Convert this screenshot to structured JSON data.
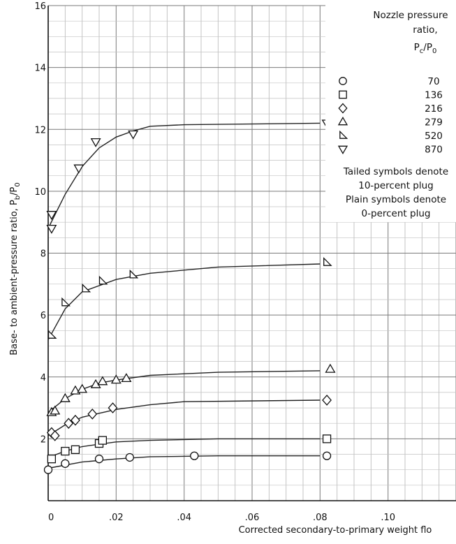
{
  "chart_data": {
    "type": "scatter",
    "xlabel": "Corrected secondary-to-primary weight flo",
    "ylabel_main": "Base- to ambient-pressure ratio,",
    "ylabel_sym": "P",
    "ylabel_sub_b": "b",
    "ylabel_slash": "/P",
    "ylabel_sub_0": "0",
    "xlim": [
      0,
      0.12
    ],
    "ylim": [
      0,
      16
    ],
    "x_ticks": [
      {
        "value": 0,
        "label": "0"
      },
      {
        "value": 0.02,
        "label": ".02"
      },
      {
        "value": 0.04,
        "label": ".04"
      },
      {
        "value": 0.06,
        "label": ".06"
      },
      {
        "value": 0.08,
        "label": ".08"
      },
      {
        "value": 0.1,
        "label": ".10"
      }
    ],
    "y_ticks": [
      {
        "value": 0,
        "label": ""
      },
      {
        "value": 2,
        "label": "2"
      },
      {
        "value": 4,
        "label": "4"
      },
      {
        "value": 6,
        "label": "6"
      },
      {
        "value": 8,
        "label": "8"
      },
      {
        "value": 10,
        "label": "10"
      },
      {
        "value": 12,
        "label": "12"
      },
      {
        "value": 14,
        "label": "14"
      },
      {
        "value": 16,
        "label": "16"
      }
    ],
    "grid": true,
    "legend_position": "top-right",
    "legend": {
      "title_lines": [
        "Nozzle pressure",
        "ratio,"
      ],
      "title_sym": "P",
      "title_sub_c": "c",
      "title_slash": "/P",
      "title_sub_0": "0",
      "entries": [
        {
          "marker": "circle",
          "label": "70"
        },
        {
          "marker": "square",
          "label": "136"
        },
        {
          "marker": "diamond",
          "label": "216"
        },
        {
          "marker": "triangle-up",
          "label": "279"
        },
        {
          "marker": "triangle-right",
          "label": "520"
        },
        {
          "marker": "triangle-down",
          "label": "870"
        }
      ],
      "notes": [
        "Tailed symbols denote",
        "10-percent plug",
        "Plain symbols denote",
        "0-percent plug"
      ]
    },
    "series": [
      {
        "marker": "circle",
        "points": [
          [
            0,
            1.0
          ],
          [
            0.005,
            1.2
          ],
          [
            0.015,
            1.35
          ],
          [
            0.024,
            1.4
          ],
          [
            0.043,
            1.45
          ],
          [
            0.082,
            1.45
          ]
        ],
        "curve": [
          [
            0,
            1.05
          ],
          [
            0.01,
            1.25
          ],
          [
            0.02,
            1.35
          ],
          [
            0.03,
            1.42
          ],
          [
            0.05,
            1.45
          ],
          [
            0.08,
            1.45
          ]
        ]
      },
      {
        "marker": "square",
        "points": [
          [
            0.001,
            1.35
          ],
          [
            0.005,
            1.6
          ],
          [
            0.008,
            1.65
          ],
          [
            0.015,
            1.85
          ],
          [
            0.016,
            1.95
          ],
          [
            0.082,
            2.0
          ]
        ],
        "curve": [
          [
            0,
            1.4
          ],
          [
            0.005,
            1.6
          ],
          [
            0.01,
            1.75
          ],
          [
            0.02,
            1.9
          ],
          [
            0.03,
            1.95
          ],
          [
            0.05,
            2.0
          ],
          [
            0.08,
            2.0
          ]
        ]
      },
      {
        "marker": "diamond",
        "points": [
          [
            0.001,
            2.2
          ],
          [
            0.002,
            2.1
          ],
          [
            0.006,
            2.5
          ],
          [
            0.008,
            2.6
          ],
          [
            0.013,
            2.8
          ],
          [
            0.019,
            3.0
          ],
          [
            0.082,
            3.25
          ]
        ],
        "curve": [
          [
            0,
            2.1
          ],
          [
            0.005,
            2.45
          ],
          [
            0.01,
            2.7
          ],
          [
            0.02,
            2.95
          ],
          [
            0.03,
            3.1
          ],
          [
            0.04,
            3.2
          ],
          [
            0.08,
            3.25
          ]
        ]
      },
      {
        "marker": "triangle-up",
        "points": [
          [
            0.001,
            2.85
          ],
          [
            0.002,
            2.9
          ],
          [
            0.005,
            3.3
          ],
          [
            0.008,
            3.55
          ],
          [
            0.01,
            3.6
          ],
          [
            0.014,
            3.75
          ],
          [
            0.016,
            3.85
          ],
          [
            0.02,
            3.9
          ],
          [
            0.023,
            3.95
          ],
          [
            0.083,
            4.25
          ]
        ],
        "curve": [
          [
            0,
            2.85
          ],
          [
            0.005,
            3.3
          ],
          [
            0.01,
            3.6
          ],
          [
            0.015,
            3.8
          ],
          [
            0.02,
            3.9
          ],
          [
            0.03,
            4.05
          ],
          [
            0.05,
            4.15
          ],
          [
            0.08,
            4.2
          ]
        ]
      },
      {
        "marker": "triangle-right",
        "points": [
          [
            0.001,
            5.35
          ],
          [
            0.005,
            6.4
          ],
          [
            0.011,
            6.85
          ],
          [
            0.016,
            7.1
          ],
          [
            0.025,
            7.3
          ],
          [
            0.082,
            7.7
          ]
        ],
        "curve": [
          [
            0,
            5.2
          ],
          [
            0.005,
            6.2
          ],
          [
            0.01,
            6.75
          ],
          [
            0.02,
            7.15
          ],
          [
            0.03,
            7.35
          ],
          [
            0.05,
            7.55
          ],
          [
            0.08,
            7.65
          ]
        ]
      },
      {
        "marker": "triangle-down",
        "points": [
          [
            0.001,
            9.25
          ],
          [
            0.001,
            8.8
          ],
          [
            0.009,
            10.75
          ],
          [
            0.014,
            11.6
          ],
          [
            0.025,
            11.85
          ],
          [
            0.082,
            12.2
          ]
        ],
        "curve": [
          [
            0,
            8.8
          ],
          [
            0.005,
            9.9
          ],
          [
            0.01,
            10.8
          ],
          [
            0.015,
            11.4
          ],
          [
            0.02,
            11.75
          ],
          [
            0.025,
            11.95
          ],
          [
            0.03,
            12.1
          ],
          [
            0.04,
            12.15
          ],
          [
            0.08,
            12.2
          ]
        ]
      }
    ]
  }
}
